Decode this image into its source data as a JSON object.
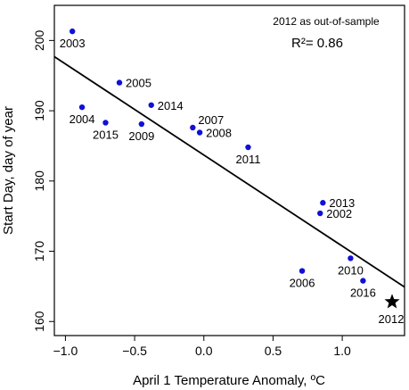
{
  "chart_data": {
    "type": "scatter",
    "title": "",
    "xlabel": "April 1 Temperature Anomaly, ºC",
    "ylabel": "Start Day, day of year",
    "xlim": [
      -1.08,
      1.45
    ],
    "ylim": [
      158,
      205
    ],
    "xticks": [
      -1.0,
      -0.5,
      0.0,
      0.5,
      1.0
    ],
    "xtick_labels": [
      "−1.0",
      "−0.5",
      "0.0",
      "0.5",
      "1.0"
    ],
    "yticks": [
      160,
      170,
      180,
      190,
      200
    ],
    "yticks_labels": [
      "160",
      "170",
      "180",
      "190",
      "200"
    ],
    "grid": false,
    "annotations": {
      "note": "2012 as out-of-sample",
      "r2_label": "R²= 0.86"
    },
    "point_color": "#1010d8",
    "outlier_color": "#000000",
    "line_color": "#000000",
    "points": [
      {
        "label": "2003",
        "x": -0.95,
        "y": 201.3,
        "lpos": "below"
      },
      {
        "label": "2004",
        "x": -0.88,
        "y": 190.5,
        "lpos": "below"
      },
      {
        "label": "2005",
        "x": -0.61,
        "y": 194.0,
        "lpos": "right"
      },
      {
        "label": "2015",
        "x": -0.71,
        "y": 188.3,
        "lpos": "below"
      },
      {
        "label": "2009",
        "x": -0.45,
        "y": 188.1,
        "lpos": "below"
      },
      {
        "label": "2014",
        "x": -0.38,
        "y": 190.8,
        "lpos": "right"
      },
      {
        "label": "2007",
        "x": -0.08,
        "y": 187.6,
        "lpos": "upright"
      },
      {
        "label": "2008",
        "x": -0.03,
        "y": 186.9,
        "lpos": "right"
      },
      {
        "label": "2011",
        "x": 0.32,
        "y": 184.8,
        "lpos": "below"
      },
      {
        "label": "2013",
        "x": 0.86,
        "y": 176.9,
        "lpos": "right"
      },
      {
        "label": "2002",
        "x": 0.84,
        "y": 175.4,
        "lpos": "right"
      },
      {
        "label": "2006",
        "x": 0.71,
        "y": 167.2,
        "lpos": "below"
      },
      {
        "label": "2010",
        "x": 1.06,
        "y": 169.0,
        "lpos": "below"
      },
      {
        "label": "2016",
        "x": 1.15,
        "y": 165.8,
        "lpos": "below"
      }
    ],
    "outlier": {
      "label": "2012",
      "x": 1.36,
      "y": 162.8,
      "marker": "star"
    },
    "fit_line": {
      "x": [
        -1.08,
        1.45
      ],
      "y": [
        197.7,
        164.9
      ]
    }
  }
}
